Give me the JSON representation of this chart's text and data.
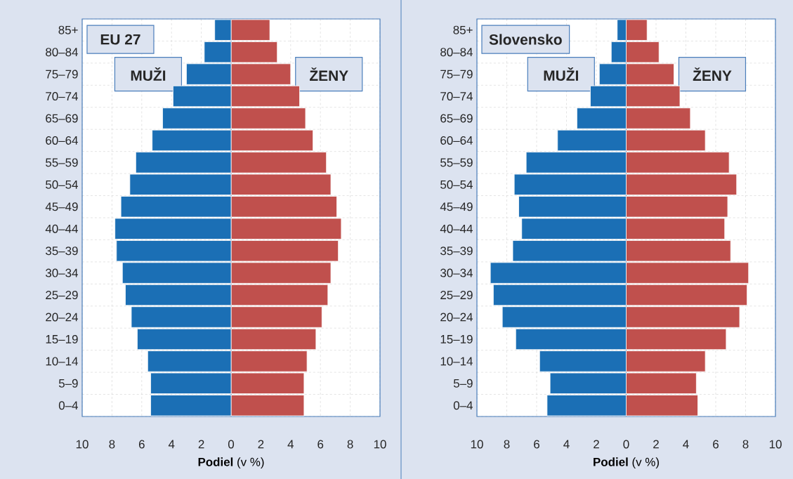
{
  "chart_data": [
    {
      "type": "bar",
      "orientation": "horizontal",
      "title": "EU 27",
      "xlabel": "**Podiel** (v %)",
      "categories": [
        "85+",
        "80–84",
        "75–79",
        "70–74",
        "65–69",
        "60–64",
        "55–59",
        "50–54",
        "45–49",
        "40–44",
        "35–39",
        "30–34",
        "25–29",
        "20–24",
        "15–19",
        "10–14",
        "5–9",
        "0–4"
      ],
      "series": [
        {
          "name": "MUŽI",
          "color": "#1b6fb5",
          "values": [
            -1.1,
            -1.8,
            -3.0,
            -3.9,
            -4.6,
            -5.3,
            -6.4,
            -6.8,
            -7.4,
            -7.8,
            -7.7,
            -7.3,
            -7.1,
            -6.7,
            -6.3,
            -5.6,
            -5.4,
            -5.4
          ]
        },
        {
          "name": "ŽENY",
          "color": "#c0504d",
          "values": [
            2.6,
            3.1,
            4.0,
            4.6,
            5.0,
            5.5,
            6.4,
            6.7,
            7.1,
            7.4,
            7.2,
            6.7,
            6.5,
            6.1,
            5.7,
            5.1,
            4.9,
            4.9
          ]
        }
      ],
      "xlim": [
        -10,
        10
      ],
      "xticks": [
        {
          "value": -10,
          "label": "10"
        },
        {
          "value": -8,
          "label": "8"
        },
        {
          "value": -6,
          "label": "6"
        },
        {
          "value": -4,
          "label": "4"
        },
        {
          "value": -2,
          "label": "2"
        },
        0,
        2,
        4,
        6,
        8,
        10
      ],
      "stacked": true,
      "ref_lines": [
        {
          "axis": "x",
          "value": 0,
          "color": "#4a7ebb"
        }
      ],
      "grid": true,
      "legend": false
    },
    {
      "type": "bar",
      "orientation": "horizontal",
      "title": "Slovensko",
      "xlabel": "**Podiel** (v %)",
      "categories": [
        "85+",
        "80–84",
        "75–79",
        "70–74",
        "65–69",
        "60–64",
        "55–59",
        "50–54",
        "45–49",
        "40–44",
        "35–39",
        "30–34",
        "25–29",
        "20–24",
        "15–19",
        "10–14",
        "5–9",
        "0–4"
      ],
      "series": [
        {
          "name": "MUŽI",
          "color": "#1b6fb5",
          "values": [
            -0.6,
            -1.0,
            -1.8,
            -2.4,
            -3.3,
            -4.6,
            -6.7,
            -7.5,
            -7.2,
            -7.0,
            -7.6,
            -9.1,
            -8.9,
            -8.3,
            -7.4,
            -5.8,
            -5.1,
            -5.3
          ]
        },
        {
          "name": "ŽENY",
          "color": "#c0504d",
          "values": [
            1.4,
            2.2,
            3.2,
            3.6,
            4.3,
            5.3,
            6.9,
            7.4,
            6.8,
            6.6,
            7.0,
            8.2,
            8.1,
            7.6,
            6.7,
            5.3,
            4.7,
            4.8
          ]
        }
      ],
      "xlim": [
        -10,
        10
      ],
      "xticks": [
        {
          "value": -10,
          "label": "10"
        },
        {
          "value": -8,
          "label": "8"
        },
        {
          "value": -6,
          "label": "6"
        },
        {
          "value": -4,
          "label": "4"
        },
        {
          "value": -2,
          "label": "2"
        },
        0,
        2,
        4,
        6,
        8,
        10
      ],
      "stacked": true,
      "ref_lines": [
        {
          "axis": "x",
          "value": 0,
          "color": "#4a7ebb"
        }
      ],
      "grid": true,
      "legend": false
    }
  ]
}
